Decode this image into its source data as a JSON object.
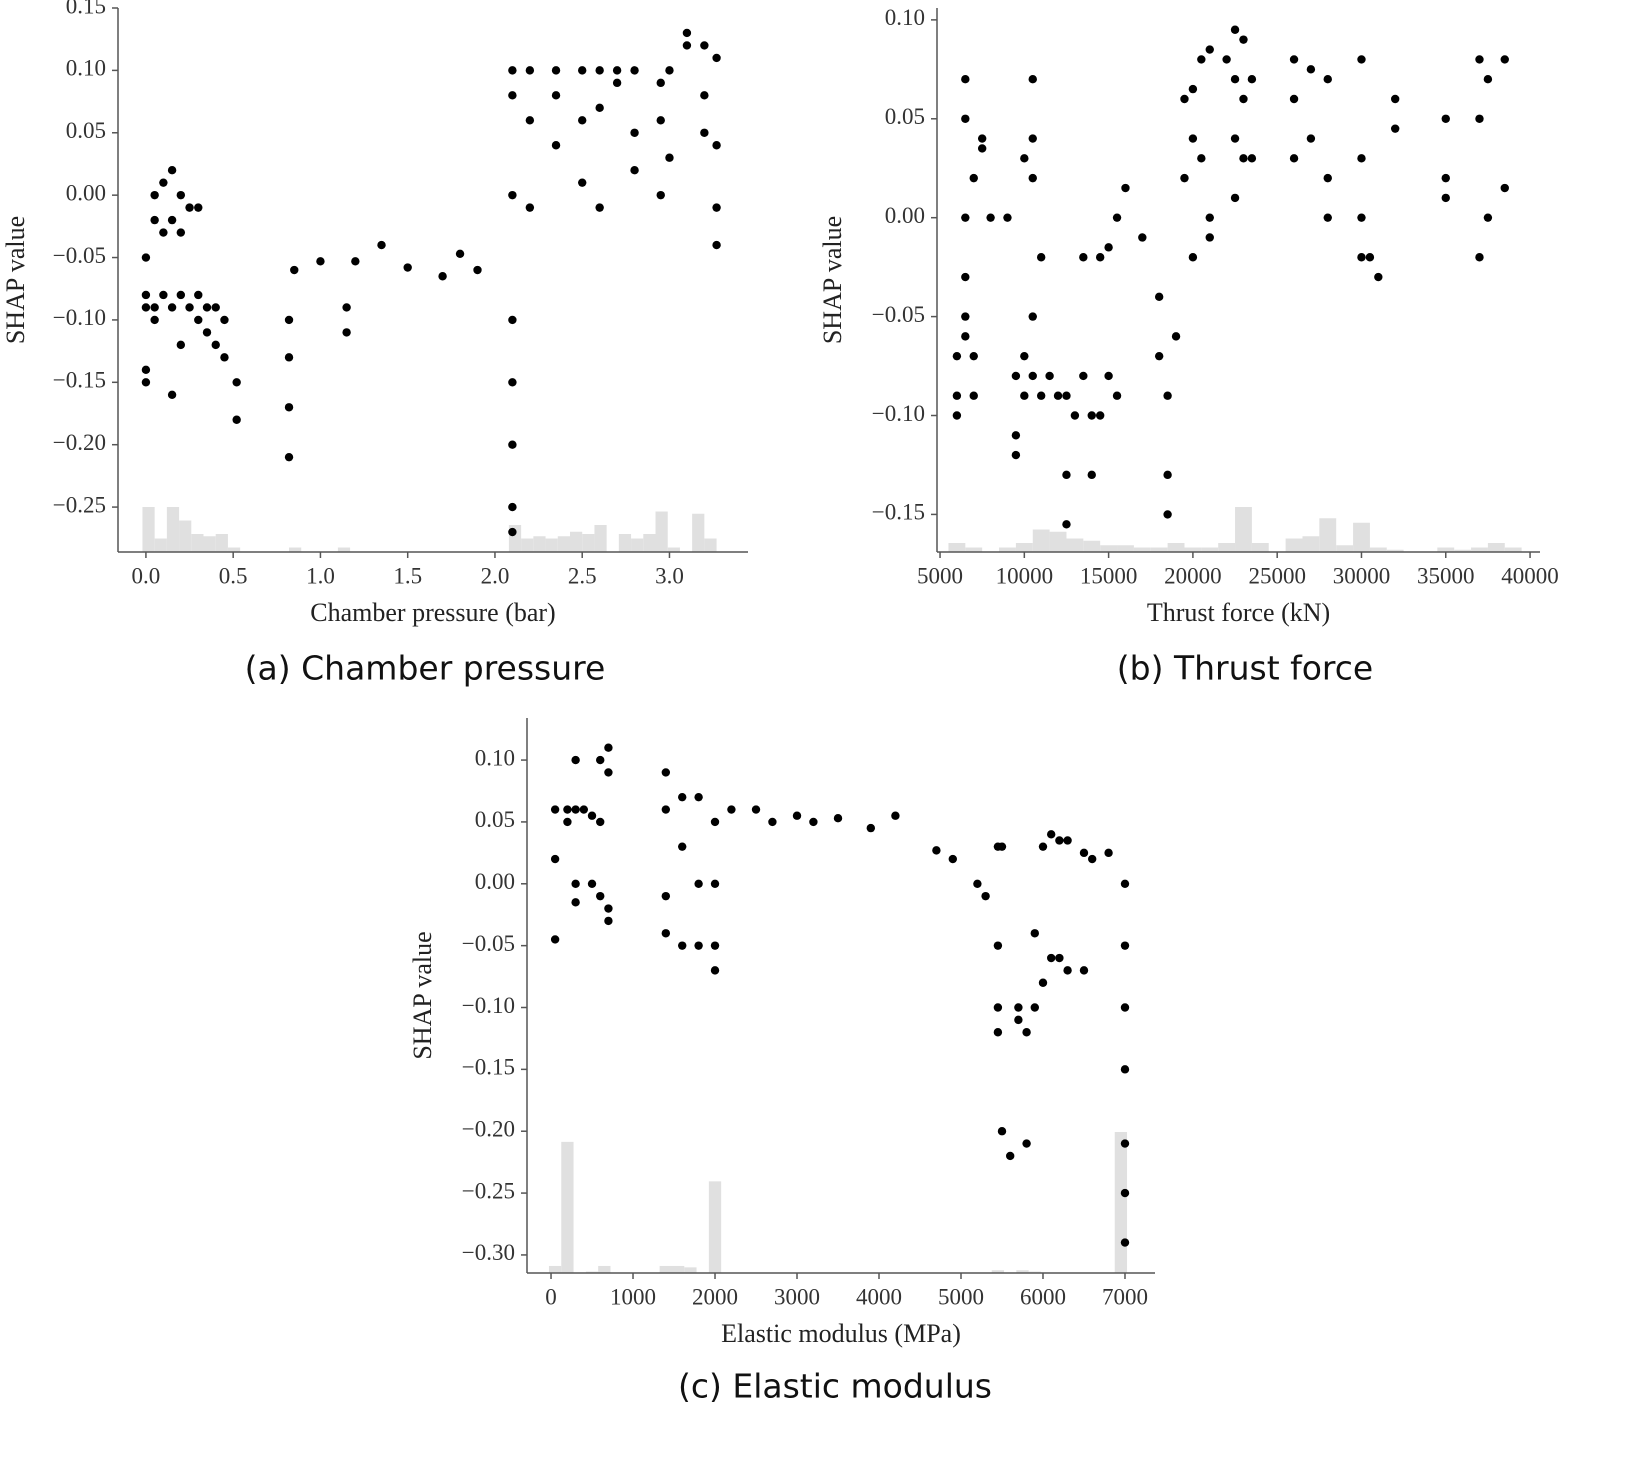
{
  "chart_data": [
    {
      "type": "scatter",
      "caption": "(a) Chamber pressure",
      "xlabel": "Chamber pressure (bar)",
      "ylabel": "SHAP value",
      "color": "#000000",
      "hist_color": "#e0e0e0",
      "xlim": [
        -0.16,
        3.45
      ],
      "ylim": [
        -0.286,
        0.15
      ],
      "xticks": [
        {
          "value": 0,
          "label": "0.0"
        },
        0.5,
        {
          "value": 1,
          "label": "1.0"
        },
        1.5,
        {
          "value": 2,
          "label": "2.0"
        },
        2.5,
        {
          "value": 3,
          "label": "3.0"
        }
      ],
      "yticks": [
        0.15,
        {
          "value": 0.1,
          "label": "0.10"
        },
        0.05,
        {
          "value": 0,
          "label": "0.00"
        },
        {
          "value": -0.05,
          "label": "−0.05"
        },
        {
          "value": -0.1,
          "label": "−0.10"
        },
        {
          "value": -0.15,
          "label": "−0.15"
        },
        {
          "value": -0.2,
          "label": "−0.20"
        },
        {
          "value": -0.25,
          "label": "−0.25"
        }
      ],
      "x": [
        0,
        0,
        0,
        0,
        0,
        0.05,
        0.05,
        0.05,
        0.05,
        0.1,
        0.1,
        0.1,
        0.15,
        0.15,
        0.15,
        0.15,
        0.2,
        0.2,
        0.2,
        0.2,
        0.25,
        0.25,
        0.3,
        0.3,
        0.3,
        0.35,
        0.35,
        0.4,
        0.4,
        0.45,
        0.45,
        0.52,
        0.52,
        0.82,
        0.82,
        0.82,
        0.82,
        0.85,
        1.0,
        1.15,
        1.15,
        1.2,
        1.35,
        1.5,
        1.7,
        1.8,
        1.9,
        2.1,
        2.1,
        2.1,
        2.1,
        2.1,
        2.1,
        2.1,
        2.1,
        2.2,
        2.2,
        2.2,
        2.35,
        2.35,
        2.35,
        2.5,
        2.5,
        2.5,
        2.6,
        2.6,
        2.6,
        2.7,
        2.7,
        2.8,
        2.8,
        2.8,
        2.95,
        2.95,
        2.95,
        3.0,
        3.0,
        3.1,
        3.1,
        3.2,
        3.2,
        3.2,
        3.27,
        3.27,
        3.27,
        3.27
      ],
      "values": [
        -0.05,
        -0.08,
        -0.09,
        -0.14,
        -0.15,
        0.0,
        -0.02,
        -0.09,
        -0.1,
        0.01,
        -0.03,
        -0.08,
        0.02,
        -0.02,
        -0.09,
        -0.16,
        0.0,
        -0.03,
        -0.08,
        -0.12,
        -0.01,
        -0.09,
        -0.01,
        -0.08,
        -0.1,
        -0.09,
        -0.11,
        -0.09,
        -0.12,
        -0.1,
        -0.13,
        -0.15,
        -0.18,
        -0.1,
        -0.13,
        -0.17,
        -0.21,
        -0.06,
        -0.053,
        -0.09,
        -0.11,
        -0.053,
        -0.04,
        -0.058,
        -0.065,
        -0.047,
        -0.06,
        -0.1,
        -0.15,
        -0.2,
        -0.25,
        -0.27,
        0.1,
        0.08,
        0.0,
        0.1,
        0.06,
        -0.01,
        0.1,
        0.08,
        0.04,
        0.1,
        0.06,
        0.01,
        0.1,
        0.07,
        -0.01,
        0.1,
        0.09,
        0.1,
        0.05,
        0.02,
        0.09,
        0.06,
        0.0,
        0.1,
        0.03,
        0.13,
        0.12,
        0.12,
        0.08,
        0.05,
        0.11,
        0.04,
        -0.01,
        -0.04
      ],
      "hist": {
        "bins": [
          -0.02,
          0.05,
          0.12,
          0.19,
          0.26,
          0.33,
          0.4,
          0.47,
          0.54,
          0.61,
          0.68,
          0.75,
          0.82,
          0.89,
          0.96,
          1.03,
          1.1,
          1.17,
          1.24,
          1.31,
          1.38,
          1.45,
          1.52,
          1.59,
          1.66,
          1.73,
          1.8,
          1.87,
          1.94,
          2.01,
          2.08,
          2.15,
          2.22,
          2.29,
          2.36,
          2.43,
          2.5,
          2.57,
          2.64,
          2.71,
          2.78,
          2.85,
          2.92,
          2.99,
          3.06,
          3.13,
          3.2,
          3.27,
          3.34
        ],
        "counts": [
          10,
          3,
          10,
          7,
          4,
          3.5,
          4,
          1,
          0,
          0,
          0,
          0,
          1,
          0,
          0,
          0,
          1,
          0,
          0,
          0,
          0,
          0,
          0,
          0,
          0,
          0,
          0,
          0,
          0,
          0,
          6,
          3,
          3.5,
          3,
          3.5,
          4.5,
          4,
          6,
          0,
          4,
          3,
          4,
          9,
          1,
          0,
          8.5,
          3,
          0
        ]
      }
    },
    {
      "type": "scatter",
      "caption": "(b) Thrust force",
      "xlabel": "Thrust force (kN)",
      "ylabel": "SHAP value",
      "color": "#000000",
      "hist_color": "#e0e0e0",
      "xlim": [
        4820,
        40590
      ],
      "ylim": [
        -0.169,
        0.106
      ],
      "xticks": [
        5000,
        10000,
        15000,
        20000,
        25000,
        30000,
        35000,
        40000
      ],
      "yticks": [
        {
          "value": 0.1,
          "label": "0.10"
        },
        0.05,
        {
          "value": 0,
          "label": "0.00"
        },
        {
          "value": -0.05,
          "label": "−0.05"
        },
        {
          "value": -0.1,
          "label": "−0.10"
        },
        {
          "value": -0.15,
          "label": "−0.15"
        }
      ],
      "x": [
        6000,
        6000,
        6000,
        6500,
        6500,
        6500,
        6500,
        6500,
        6500,
        7000,
        7000,
        7000,
        7500,
        7500,
        8000,
        9000,
        9500,
        9500,
        9500,
        10000,
        10000,
        10000,
        10500,
        10500,
        10500,
        10500,
        10500,
        11000,
        11000,
        11500,
        12000,
        12500,
        12500,
        12500,
        13000,
        13500,
        13500,
        14000,
        14000,
        14500,
        14500,
        15000,
        15000,
        15500,
        15500,
        16000,
        17000,
        18000,
        18000,
        18500,
        18500,
        18500,
        19000,
        19500,
        19500,
        20000,
        20000,
        20000,
        20500,
        20500,
        21000,
        21000,
        21000,
        22000,
        22500,
        22500,
        22500,
        22500,
        23000,
        23000,
        23000,
        23500,
        23500,
        26000,
        26000,
        26000,
        27000,
        27000,
        28000,
        28000,
        28000,
        30000,
        30000,
        30000,
        30000,
        30500,
        31000,
        32000,
        32000,
        35000,
        35000,
        35000,
        37000,
        37000,
        37000,
        37500,
        37500,
        38500,
        38500
      ],
      "values": [
        -0.07,
        -0.09,
        -0.1,
        0.07,
        0.05,
        0.0,
        -0.03,
        -0.05,
        -0.06,
        0.02,
        -0.07,
        -0.09,
        0.04,
        0.035,
        0.0,
        0.0,
        -0.08,
        -0.11,
        -0.12,
        0.03,
        -0.07,
        -0.09,
        0.07,
        0.04,
        0.02,
        -0.05,
        -0.08,
        -0.02,
        -0.09,
        -0.08,
        -0.09,
        -0.13,
        -0.155,
        -0.09,
        -0.1,
        -0.02,
        -0.08,
        -0.13,
        -0.1,
        -0.02,
        -0.1,
        -0.015,
        -0.08,
        0.0,
        -0.09,
        0.015,
        -0.01,
        -0.04,
        -0.07,
        -0.13,
        -0.15,
        -0.09,
        -0.06,
        0.06,
        0.02,
        0.065,
        0.04,
        -0.02,
        0.08,
        0.03,
        0.085,
        0.0,
        -0.01,
        0.08,
        0.095,
        0.07,
        0.04,
        0.01,
        0.09,
        0.06,
        0.03,
        0.07,
        0.03,
        0.08,
        0.06,
        0.03,
        0.075,
        0.04,
        0.07,
        0.02,
        0.0,
        0.08,
        0.03,
        0.0,
        -0.02,
        -0.02,
        -0.03,
        0.06,
        0.045,
        0.05,
        0.02,
        0.01,
        0.08,
        0.05,
        -0.02,
        0.07,
        0.0,
        0.08,
        0.015
      ],
      "hist": {
        "bins": [
          5500,
          6500,
          7500,
          8500,
          9500,
          10500,
          11500,
          12500,
          13500,
          14500,
          15500,
          16500,
          17500,
          18500,
          19500,
          20500,
          21500,
          22500,
          23500,
          24500,
          25500,
          26500,
          27500,
          28500,
          29500,
          30500,
          31500,
          32500,
          33500,
          34500,
          35500,
          36500,
          37500,
          38500,
          39500
        ],
        "counts": [
          2,
          1,
          0,
          1,
          2,
          5,
          4.5,
          3,
          2.5,
          1.5,
          1.5,
          1,
          1,
          2,
          1,
          1,
          2,
          10,
          2,
          0,
          3,
          3.5,
          7.5,
          1.5,
          6.5,
          1,
          0.5,
          0,
          0,
          1,
          0.5,
          1,
          2,
          1
        ]
      }
    },
    {
      "type": "scatter",
      "caption": "(c) Elastic modulus",
      "xlabel": "Elastic modulus (MPa)",
      "ylabel": "SHAP value",
      "color": "#000000",
      "hist_color": "#e0e0e0",
      "xlim": [
        -293,
        7366
      ],
      "ylim": [
        -0.3146,
        0.134
      ],
      "xticks": [
        0,
        1000,
        2000,
        3000,
        4000,
        5000,
        6000,
        7000
      ],
      "yticks": [
        {
          "value": 0.1,
          "label": "0.10"
        },
        0.05,
        {
          "value": 0,
          "label": "0.00"
        },
        {
          "value": -0.05,
          "label": "−0.05"
        },
        {
          "value": -0.1,
          "label": "−0.10"
        },
        {
          "value": -0.15,
          "label": "−0.15"
        },
        {
          "value": -0.2,
          "label": "−0.20"
        },
        {
          "value": -0.25,
          "label": "−0.25"
        },
        {
          "value": -0.3,
          "label": "−0.30"
        }
      ],
      "x": [
        50,
        50,
        50,
        200,
        200,
        300,
        300,
        300,
        300,
        400,
        500,
        500,
        600,
        600,
        600,
        700,
        700,
        700,
        700,
        1400,
        1400,
        1400,
        1400,
        1600,
        1600,
        1600,
        1800,
        1800,
        1800,
        2000,
        2000,
        2000,
        2000,
        2200,
        2500,
        2700,
        3000,
        3200,
        3500,
        3900,
        4200,
        4700,
        4900,
        5200,
        5300,
        5450,
        5450,
        5450,
        5450,
        5500,
        5500,
        5600,
        5700,
        5700,
        5800,
        5800,
        5900,
        5900,
        6000,
        6000,
        6100,
        6100,
        6200,
        6200,
        6300,
        6300,
        6500,
        6500,
        6600,
        6800,
        7000,
        7000,
        7000,
        7000,
        7000,
        7000,
        7000
      ],
      "values": [
        0.06,
        0.02,
        -0.045,
        0.06,
        0.05,
        0.1,
        0.06,
        0.0,
        -0.015,
        0.06,
        0.055,
        0.0,
        0.1,
        0.05,
        -0.01,
        0.11,
        0.09,
        -0.02,
        -0.03,
        0.09,
        0.06,
        -0.01,
        -0.04,
        0.07,
        0.03,
        -0.05,
        0.07,
        0.0,
        -0.05,
        0.05,
        0.0,
        -0.05,
        -0.07,
        0.06,
        0.06,
        0.05,
        0.055,
        0.05,
        0.053,
        0.045,
        0.055,
        0.027,
        0.02,
        0.0,
        -0.01,
        0.03,
        -0.05,
        -0.1,
        -0.12,
        0.03,
        -0.2,
        -0.22,
        -0.1,
        -0.11,
        -0.21,
        -0.12,
        -0.04,
        -0.1,
        0.03,
        -0.08,
        0.04,
        -0.06,
        0.035,
        -0.06,
        0.035,
        -0.07,
        0.025,
        -0.07,
        0.02,
        0.025,
        0.0,
        -0.05,
        -0.1,
        -0.15,
        -0.21,
        -0.25,
        -0.29
      ],
      "hist": {
        "bins": [
          -25,
          125,
          275,
          425,
          575,
          725,
          875,
          1025,
          1175,
          1325,
          1475,
          1625,
          1775,
          1925,
          2075,
          2225,
          2375,
          2525,
          2675,
          2825,
          2975,
          3125,
          3275,
          3425,
          3575,
          3725,
          3875,
          4025,
          4175,
          4325,
          4475,
          4625,
          4775,
          4925,
          5075,
          5225,
          5375,
          5525,
          5675,
          5825,
          5975,
          6125,
          6275,
          6425,
          6575,
          6725,
          6875,
          7025
        ],
        "counts": [
          5,
          93,
          0,
          1,
          5,
          0,
          0,
          0,
          0,
          5,
          5,
          4,
          0,
          65,
          0,
          0,
          0,
          0,
          0,
          0,
          0,
          0,
          0,
          0,
          0,
          0,
          0,
          0,
          0,
          0,
          0,
          0,
          0,
          0,
          0,
          0,
          2,
          0,
          2,
          1,
          0,
          0,
          0,
          0,
          0,
          0,
          100
        ]
      }
    }
  ]
}
